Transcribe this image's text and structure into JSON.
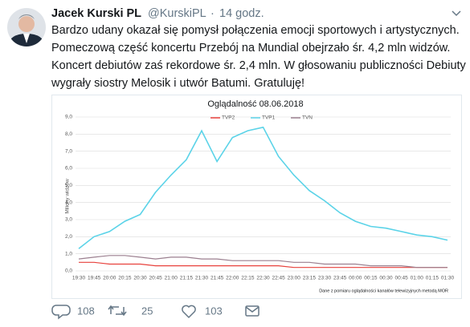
{
  "tweet": {
    "author": "Jacek Kurski PL",
    "handle": "@KurskiPL",
    "separator": "·",
    "time": "14 godz.",
    "text_lines": [
      "Bardzo udany okazał się pomysł połączenia emocji sportowych i artystycznych.",
      "Pomeczową część koncertu Przebój na Mundial obejrzało śr. 4,2 mln widzów.",
      "Koncert debiutów zaś rekordowe śr. 2,4 mln. W głosowaniu publiczności Debiuty",
      "wygrały siostry Melosik i utwór Batumi. Gratuluję!"
    ],
    "replies": 108,
    "retweets": 25,
    "likes": 103
  },
  "chart_data": {
    "type": "line",
    "title": "Oglądalność 08.06.2018",
    "ylabel": "Miliony widzów",
    "note": "Dane z pomiaru oglądalności kanałów telewizyjnych metodą MOR",
    "categories": [
      "19:30",
      "19:45",
      "20:00",
      "20:15",
      "20:30",
      "20:45",
      "21:00",
      "21:15",
      "21:30",
      "21:45",
      "22:00",
      "22:15",
      "22:30",
      "22:45",
      "23:00",
      "23:15",
      "23:30",
      "23:45",
      "00:00",
      "00:15",
      "00:30",
      "00:45",
      "01:00",
      "01:15",
      "01:30"
    ],
    "series": [
      {
        "name": "TVP2",
        "color": "#e8413c",
        "values": [
          0.5,
          0.5,
          0.4,
          0.4,
          0.4,
          0.3,
          0.3,
          0.3,
          0.3,
          0.3,
          0.3,
          0.3,
          0.3,
          0.3,
          0.2,
          0.2,
          0.2,
          0.2,
          0.2,
          0.2,
          0.2,
          0.2,
          0.2,
          0.2,
          0.2
        ]
      },
      {
        "name": "TVP1",
        "color": "#5bd3e8",
        "values": [
          1.3,
          2.0,
          2.3,
          2.9,
          3.3,
          4.6,
          5.6,
          6.5,
          8.2,
          6.4,
          7.8,
          8.2,
          8.4,
          6.7,
          5.6,
          4.7,
          4.1,
          3.4,
          2.9,
          2.6,
          2.5,
          2.3,
          2.1,
          2.0,
          1.8
        ]
      },
      {
        "name": "TVN",
        "color": "#9b7f8f",
        "values": [
          0.7,
          0.8,
          0.9,
          0.9,
          0.8,
          0.7,
          0.8,
          0.8,
          0.7,
          0.7,
          0.6,
          0.6,
          0.6,
          0.6,
          0.5,
          0.5,
          0.4,
          0.4,
          0.4,
          0.3,
          0.3,
          0.3,
          0.2,
          0.2,
          0.2
        ]
      }
    ],
    "ylim": [
      0,
      9
    ],
    "yticks": [
      {
        "value": 0,
        "label": "0,0"
      },
      {
        "value": 1,
        "label": "1,0"
      },
      {
        "value": 2,
        "label": "2,0"
      },
      {
        "value": 3,
        "label": "3,0"
      },
      {
        "value": 4,
        "label": "4,0"
      },
      {
        "value": 5,
        "label": "5,0"
      },
      {
        "value": 6,
        "label": "6,0"
      },
      {
        "value": 7,
        "label": "7,0"
      },
      {
        "value": 8,
        "label": "8,0"
      },
      {
        "value": 9,
        "label": "9,0"
      }
    ],
    "grid": true
  }
}
